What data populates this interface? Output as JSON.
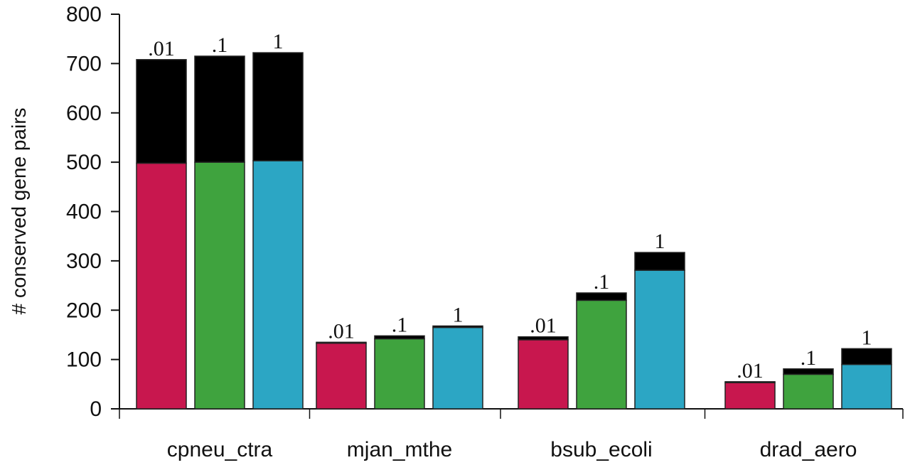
{
  "chart_data": {
    "type": "bar",
    "stacked": true,
    "ylabel": "# conserved gene pairs",
    "xlabel": "",
    "ylim": [
      0,
      800
    ],
    "y_ticks": [
      0,
      100,
      200,
      300,
      400,
      500,
      600,
      700,
      800
    ],
    "grid": false,
    "legend": "none",
    "categories": [
      "cpneu_ctra",
      "mjan_mthe",
      "bsub_ecoli",
      "drad_aero"
    ],
    "bar_labels": [
      ".01",
      ".1",
      "1"
    ],
    "bar_colors": [
      "#c8174e",
      "#3fa33e",
      "#2ca6c4"
    ],
    "top_segment_color": "#000000",
    "series": [
      {
        "values": [
          [
            498,
            708
          ],
          [
            500,
            715
          ],
          [
            503,
            722
          ]
        ]
      },
      {
        "values": [
          [
            133,
            135
          ],
          [
            142,
            148
          ],
          [
            165,
            168
          ]
        ]
      },
      {
        "values": [
          [
            140,
            146
          ],
          [
            220,
            235
          ],
          [
            281,
            317
          ]
        ]
      },
      {
        "values": [
          [
            53,
            55
          ],
          [
            70,
            81
          ],
          [
            90,
            122
          ]
        ]
      }
    ]
  }
}
